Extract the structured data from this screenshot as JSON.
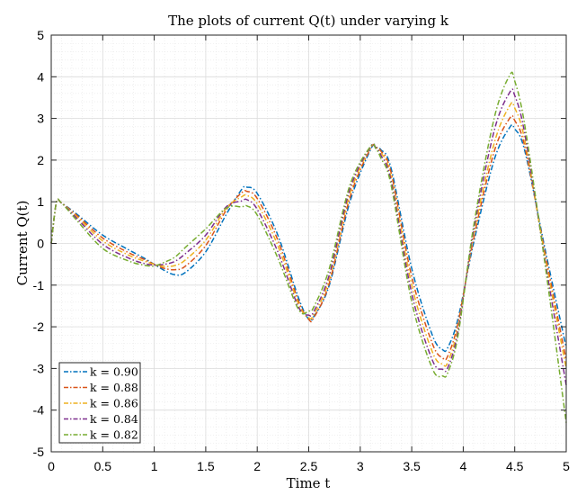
{
  "chart_data": {
    "type": "line",
    "title": "The plots of current Q(t) under varying k",
    "xlabel": "Time t",
    "ylabel": "Current Q(t)",
    "xlim": [
      0,
      5
    ],
    "ylim": [
      -5,
      5
    ],
    "xticks": [
      0,
      0.5,
      1,
      1.5,
      2,
      2.5,
      3,
      3.5,
      4,
      4.5,
      5
    ],
    "xtick_labels": [
      "0",
      "0.5",
      "1",
      "1.5",
      "2",
      "2.5",
      "3",
      "3.5",
      "4",
      "4.5",
      "5"
    ],
    "yticks": [
      -5,
      -4,
      -3,
      -2,
      -1,
      0,
      1,
      2,
      3,
      4,
      5
    ],
    "ytick_labels": [
      "-5",
      "-4",
      "-3",
      "-2",
      "-1",
      "0",
      "1",
      "2",
      "3",
      "4",
      "5"
    ],
    "grid": true,
    "minor_grid": true,
    "legend_position": "bottom-left",
    "line_style": "dash-dot",
    "x": [
      0,
      0.05,
      0.1,
      0.25,
      0.5,
      0.75,
      0.9,
      1.0,
      1.1,
      1.2,
      1.3,
      1.5,
      1.7,
      1.85,
      1.9,
      2.0,
      2.2,
      2.4,
      2.5,
      2.55,
      2.7,
      2.9,
      3.1,
      3.15,
      3.2,
      3.3,
      3.5,
      3.7,
      3.8,
      3.85,
      3.95,
      4.1,
      4.3,
      4.45,
      4.5,
      4.6,
      4.8,
      5.0
    ],
    "series": [
      {
        "name": "k = 0.90",
        "color": "#0072BD",
        "values": [
          0,
          0.98,
          0.97,
          0.7,
          0.2,
          -0.15,
          -0.35,
          -0.5,
          -0.65,
          -0.75,
          -0.7,
          -0.2,
          0.7,
          1.3,
          1.35,
          1.2,
          0.2,
          -1.3,
          -1.82,
          -1.75,
          -1.0,
          1.0,
          2.25,
          2.3,
          2.25,
          1.8,
          -0.6,
          -2.2,
          -2.55,
          -2.5,
          -1.8,
          0.0,
          2.0,
          2.78,
          2.75,
          2.2,
          -0.2,
          -2.5
        ]
      },
      {
        "name": "k = 0.88",
        "color": "#D95319",
        "values": [
          0,
          0.98,
          0.97,
          0.67,
          0.13,
          -0.22,
          -0.38,
          -0.5,
          -0.6,
          -0.63,
          -0.55,
          -0.05,
          0.8,
          1.22,
          1.25,
          1.08,
          0.08,
          -1.38,
          -1.82,
          -1.78,
          -0.95,
          1.1,
          2.28,
          2.3,
          2.22,
          1.7,
          -0.8,
          -2.4,
          -2.75,
          -2.7,
          -1.9,
          0.1,
          2.2,
          3.0,
          2.95,
          2.3,
          -0.3,
          -2.8
        ]
      },
      {
        "name": "k = 0.86",
        "color": "#EDB120",
        "values": [
          0,
          0.98,
          0.97,
          0.64,
          0.06,
          -0.28,
          -0.42,
          -0.5,
          -0.55,
          -0.53,
          -0.4,
          0.08,
          0.85,
          1.12,
          1.15,
          0.95,
          -0.05,
          -1.45,
          -1.78,
          -1.7,
          -0.85,
          1.2,
          2.3,
          2.3,
          2.18,
          1.6,
          -1.0,
          -2.6,
          -2.9,
          -2.85,
          -2.0,
          0.2,
          2.4,
          3.3,
          3.25,
          2.45,
          -0.4,
          -3.0
        ]
      },
      {
        "name": "k = 0.84",
        "color": "#7E2F8E",
        "values": [
          0,
          0.98,
          0.97,
          0.6,
          -0.02,
          -0.35,
          -0.48,
          -0.52,
          -0.5,
          -0.43,
          -0.25,
          0.2,
          0.88,
          1.02,
          1.05,
          0.82,
          -0.2,
          -1.52,
          -1.72,
          -1.63,
          -0.75,
          1.3,
          2.32,
          2.3,
          2.12,
          1.5,
          -1.2,
          -2.8,
          -3.02,
          -2.98,
          -2.1,
          0.3,
          2.7,
          3.62,
          3.55,
          2.6,
          -0.5,
          -3.4
        ]
      },
      {
        "name": "k = 0.82",
        "color": "#77AC30",
        "values": [
          0,
          0.98,
          0.97,
          0.55,
          -0.12,
          -0.42,
          -0.52,
          -0.54,
          -0.45,
          -0.33,
          -0.1,
          0.35,
          0.85,
          0.88,
          0.9,
          0.68,
          -0.35,
          -1.58,
          -1.62,
          -1.52,
          -0.6,
          1.4,
          2.33,
          2.28,
          2.05,
          1.4,
          -1.4,
          -3.0,
          -3.18,
          -3.1,
          -2.2,
          0.4,
          3.0,
          4.03,
          3.9,
          2.8,
          -0.6,
          -4.3
        ]
      }
    ]
  }
}
